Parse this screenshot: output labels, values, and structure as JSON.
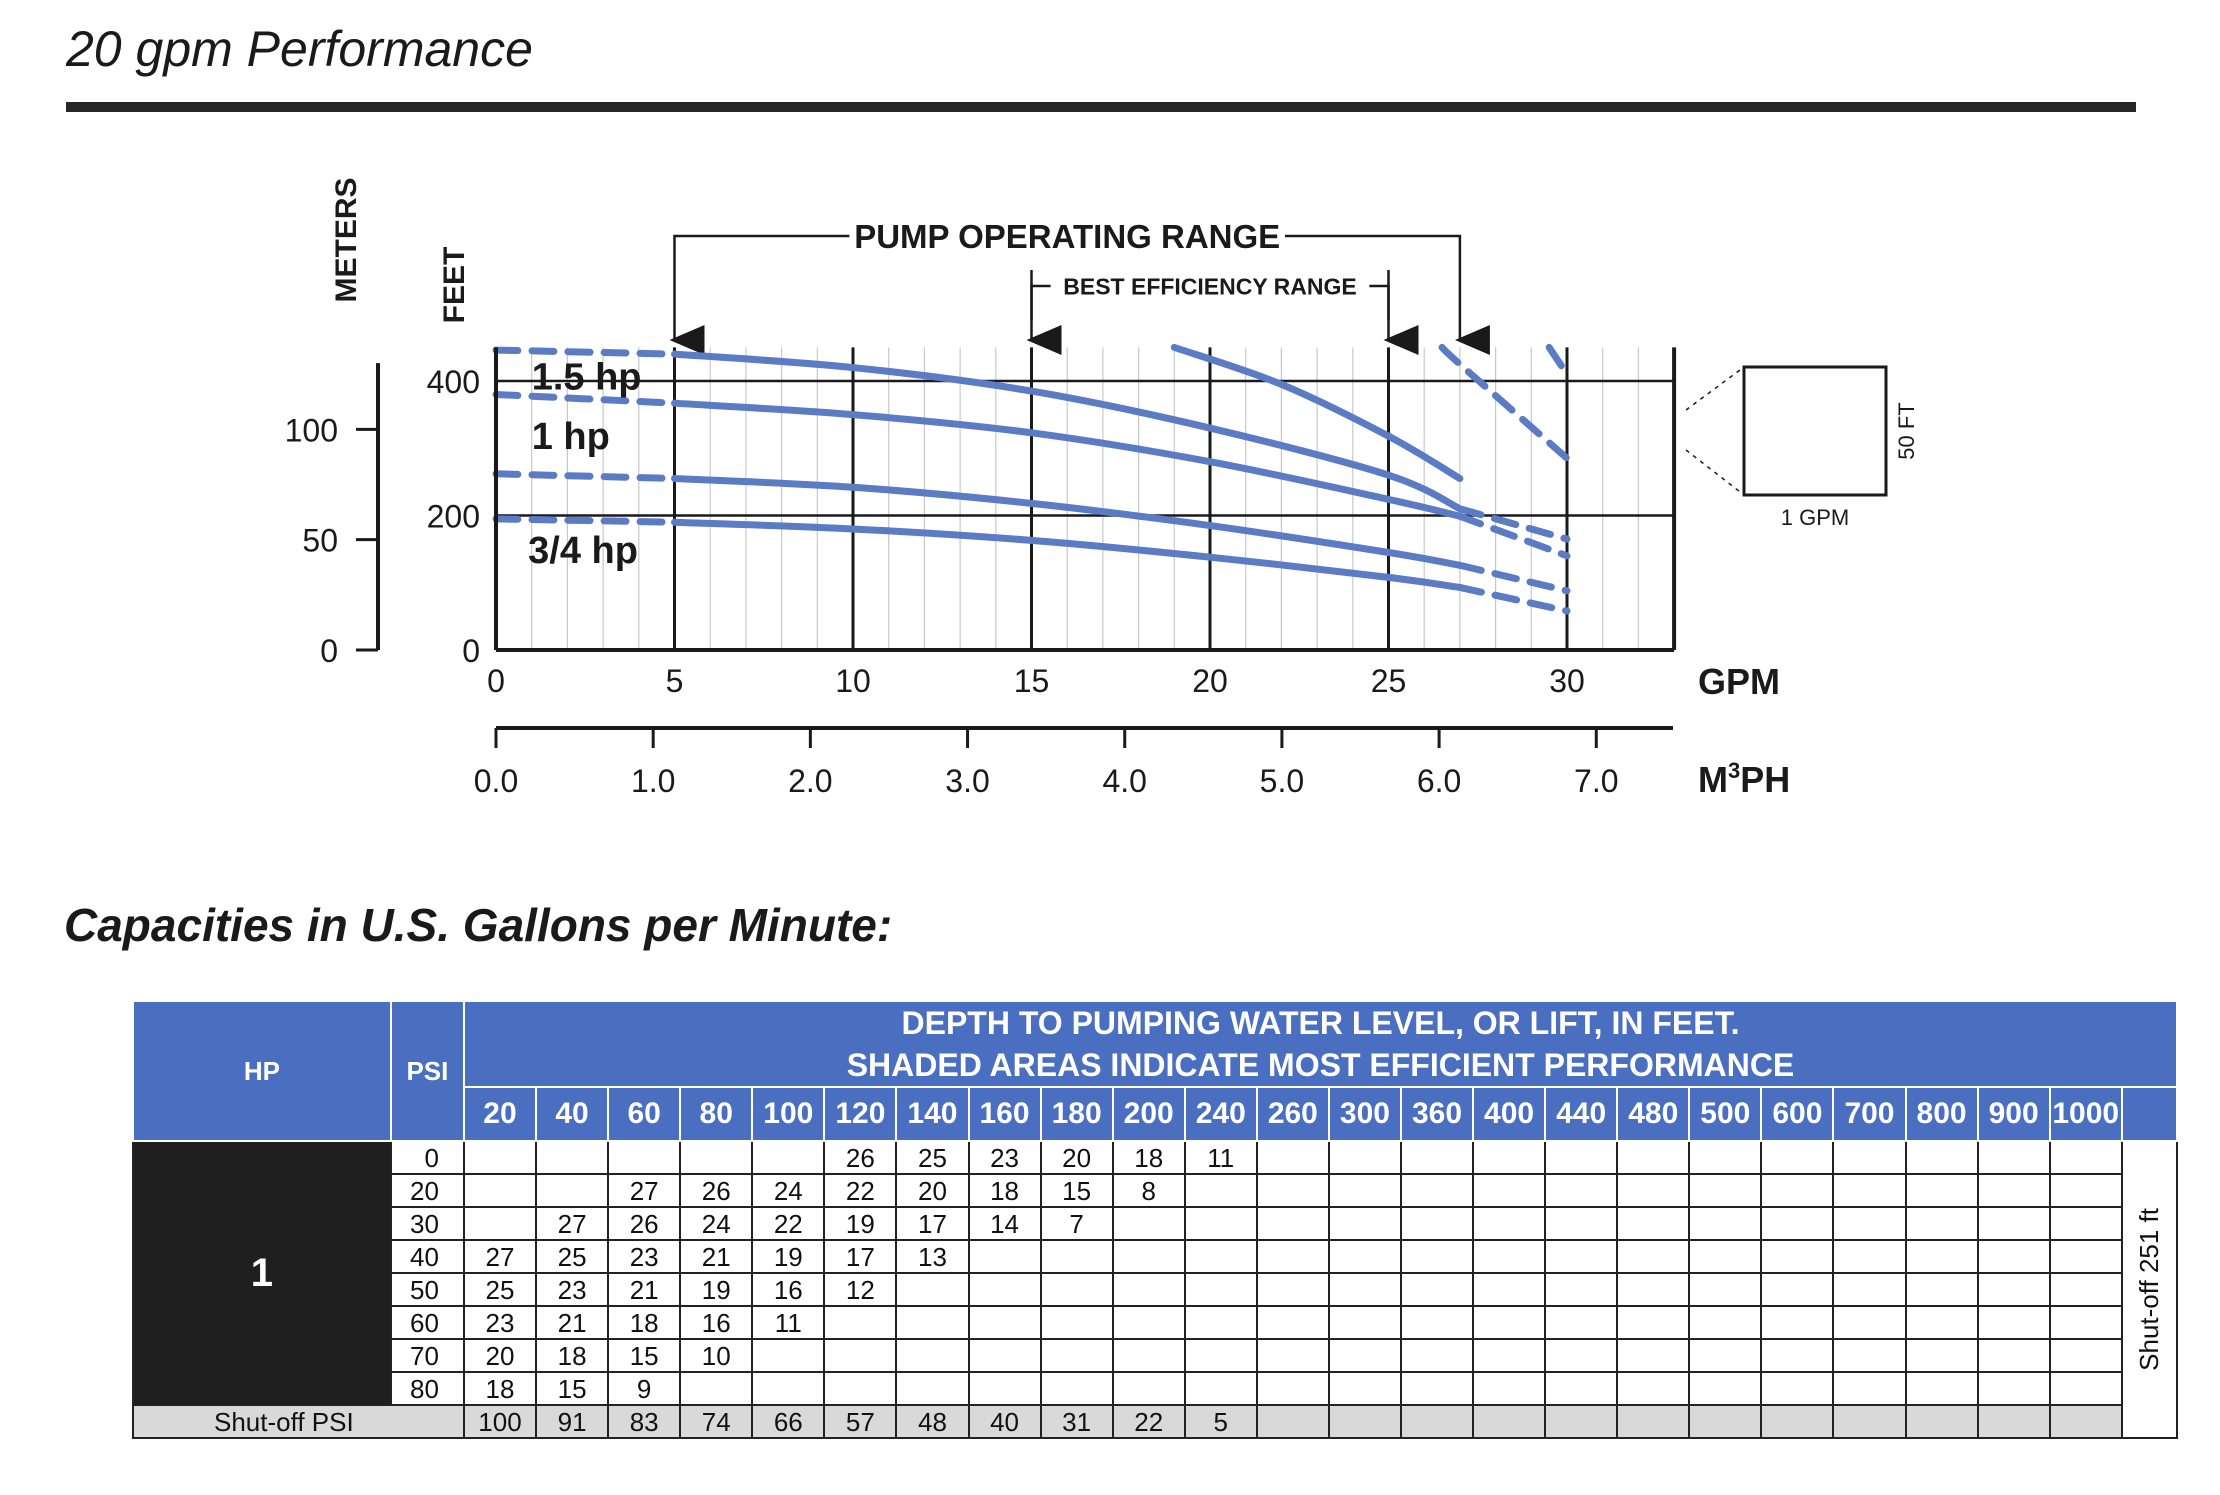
{
  "page": {
    "title": "20 gpm Performance"
  },
  "chart_data": {
    "type": "line",
    "xlabel": "GPM",
    "x2label": "M³PH",
    "ylabel": "FEET",
    "y2label": "METERS",
    "xlim": [
      0,
      33
    ],
    "ylim": [
      0,
      450
    ],
    "x_ticks": [
      "0",
      "5",
      "10",
      "15",
      "20",
      "25",
      "30"
    ],
    "x2_ticks": [
      "0.0",
      "1.0",
      "2.0",
      "3.0",
      "4.0",
      "5.0",
      "6.0",
      "7.0"
    ],
    "y_ticks": [
      "0",
      "200",
      "400"
    ],
    "y2_ticks": [
      "0",
      "50",
      "100"
    ],
    "grid": true,
    "pump_operating_range": {
      "label": "PUMP OPERATING RANGE",
      "x": [
        5,
        27
      ]
    },
    "best_efficiency_range": {
      "label": "BEST EFFICIENCY RANGE",
      "x": [
        15,
        25
      ]
    },
    "inset": {
      "x_label": "1 GPM",
      "y_label": "50 FT"
    },
    "series": [
      {
        "name": "1.5 hp",
        "x": [
          0,
          5,
          10,
          15,
          20,
          25,
          27,
          30
        ],
        "y": [
          446,
          440,
          420,
          385,
          330,
          260,
          210,
          165
        ]
      },
      {
        "name": "1 hp",
        "x": [
          0,
          5,
          10,
          15,
          20,
          25,
          27,
          30
        ],
        "y": [
          380,
          367,
          350,
          323,
          280,
          224,
          199,
          140
        ]
      },
      {
        "name": "3/4 hp",
        "x": [
          0,
          5,
          10,
          15,
          20,
          25,
          27,
          30
        ],
        "y": [
          262,
          255,
          242,
          218,
          185,
          145,
          126,
          88
        ]
      },
      {
        "name": "",
        "x": [
          0,
          5,
          10,
          15,
          20,
          25,
          27,
          30
        ],
        "y": [
          195,
          190,
          180,
          163,
          138,
          108,
          93,
          58
        ]
      }
    ],
    "extra_series": [
      {
        "x": [
          19,
          22,
          25,
          27
        ],
        "y": [
          450,
          395,
          318,
          255
        ]
      },
      {
        "x": [
          26.5,
          27,
          30
        ],
        "y": [
          450,
          425,
          285
        ]
      },
      {
        "x": [
          29.5,
          30
        ],
        "y": [
          450,
          410
        ]
      }
    ]
  },
  "capacities": {
    "title": "Capacities in U.S. Gallons per Minute:",
    "header_hp": "HP",
    "header_psi": "PSI",
    "banner_line1": "DEPTH TO PUMPING WATER LEVEL, OR LIFT, IN FEET.",
    "banner_line2": "SHADED AREAS INDICATE MOST EFFICIENT PERFORMANCE",
    "depths": [
      "20",
      "40",
      "60",
      "80",
      "100",
      "120",
      "140",
      "160",
      "180",
      "200",
      "240",
      "260",
      "300",
      "360",
      "400",
      "440",
      "480",
      "500",
      "600",
      "700",
      "800",
      "900",
      "1000"
    ],
    "hp": "1",
    "side_note": "Shut-off 251 ft",
    "rows": [
      {
        "psi": "0",
        "values": [
          "",
          "",
          "",
          "",
          "",
          "26",
          "25",
          "23",
          "20",
          "18",
          "11",
          "",
          "",
          "",
          "",
          "",
          "",
          "",
          "",
          "",
          "",
          "",
          ""
        ]
      },
      {
        "psi": "20",
        "values": [
          "",
          "",
          "27",
          "26",
          "24",
          "22",
          "20",
          "18",
          "15",
          "8",
          "",
          "",
          "",
          "",
          "",
          "",
          "",
          "",
          "",
          "",
          "",
          "",
          ""
        ]
      },
      {
        "psi": "30",
        "values": [
          "",
          "27",
          "26",
          "24",
          "22",
          "19",
          "17",
          "14",
          "7",
          "",
          "",
          "",
          "",
          "",
          "",
          "",
          "",
          "",
          "",
          "",
          "",
          "",
          ""
        ]
      },
      {
        "psi": "40",
        "values": [
          "27",
          "25",
          "23",
          "21",
          "19",
          "17",
          "13",
          "",
          "",
          "",
          "",
          "",
          "",
          "",
          "",
          "",
          "",
          "",
          "",
          "",
          "",
          "",
          ""
        ]
      },
      {
        "psi": "50",
        "values": [
          "25",
          "23",
          "21",
          "19",
          "16",
          "12",
          "",
          "",
          "",
          "",
          "",
          "",
          "",
          "",
          "",
          "",
          "",
          "",
          "",
          "",
          "",
          "",
          ""
        ]
      },
      {
        "psi": "60",
        "values": [
          "23",
          "21",
          "18",
          "16",
          "11",
          "",
          "",
          "",
          "",
          "",
          "",
          "",
          "",
          "",
          "",
          "",
          "",
          "",
          "",
          "",
          "",
          "",
          ""
        ]
      },
      {
        "psi": "70",
        "values": [
          "20",
          "18",
          "15",
          "10",
          "",
          "",
          "",
          "",
          "",
          "",
          "",
          "",
          "",
          "",
          "",
          "",
          "",
          "",
          "",
          "",
          "",
          "",
          ""
        ]
      },
      {
        "psi": "80",
        "values": [
          "18",
          "15",
          "9",
          "",
          "",
          "",
          "",
          "",
          "",
          "",
          "",
          "",
          "",
          "",
          "",
          "",
          "",
          "",
          "",
          "",
          "",
          "",
          ""
        ]
      }
    ],
    "shutoff_label": "Shut-off PSI",
    "shutoff_values": [
      "100",
      "91",
      "83",
      "74",
      "66",
      "57",
      "48",
      "40",
      "31",
      "22",
      "5",
      "",
      "",
      "",
      "",
      "",
      "",
      "",
      "",
      "",
      "",
      "",
      ""
    ]
  },
  "colors": {
    "curve": "#5b7bc4",
    "header_bg": "#4a6fc1",
    "hp_bg": "#1f1f1f",
    "shutoff_bg": "#d9d9d9"
  }
}
